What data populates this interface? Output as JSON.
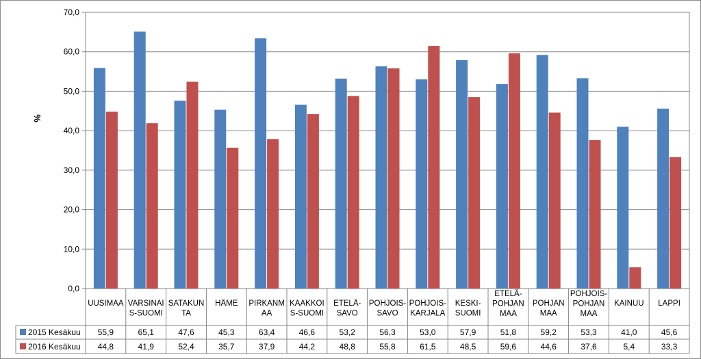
{
  "chart_data": {
    "type": "bar",
    "title": "",
    "xlabel": "",
    "ylabel": "%",
    "ylim": [
      0,
      70
    ],
    "yticks": [
      "0,0",
      "10,0",
      "20,0",
      "30,0",
      "40,0",
      "50,0",
      "60,0",
      "70,0"
    ],
    "grid": true,
    "legend": "data-table",
    "categories": [
      [
        "UUSIMAA"
      ],
      [
        "VARSINAI",
        "S-SUOMI"
      ],
      [
        "SATAKUN",
        "TA"
      ],
      [
        "HÄME"
      ],
      [
        "PIRKANM",
        "AA"
      ],
      [
        "KAAKKOI",
        "S-SUOMI"
      ],
      [
        "ETELÄ-",
        "SAVO"
      ],
      [
        "POHJOIS-",
        "SAVO"
      ],
      [
        "POHJOIS-",
        "KARJALA"
      ],
      [
        "KESKI-",
        "SUOMI"
      ],
      [
        "ETELÄ-",
        "POHJAN",
        "MAA"
      ],
      [
        "POHJAN",
        "MAA"
      ],
      [
        "POHJOIS-",
        "POHJAN",
        "MAA"
      ],
      [
        "KAINUU"
      ],
      [
        "LAPPI"
      ]
    ],
    "series": [
      {
        "name": "2015 Kesäkuu",
        "color": "#4f81bd",
        "values": [
          55.9,
          65.1,
          47.6,
          45.3,
          63.4,
          46.6,
          53.2,
          56.3,
          53.0,
          57.9,
          51.8,
          59.2,
          53.3,
          41.0,
          45.6
        ],
        "labels": [
          "55,9",
          "65,1",
          "47,6",
          "45,3",
          "63,4",
          "46,6",
          "53,2",
          "56,3",
          "53,0",
          "57,9",
          "51,8",
          "59,2",
          "53,3",
          "41,0",
          "45,6"
        ]
      },
      {
        "name": "2016 Kesäkuu",
        "color": "#c0504d",
        "values": [
          44.8,
          41.9,
          52.4,
          35.7,
          37.9,
          44.2,
          48.8,
          55.8,
          61.5,
          48.5,
          59.6,
          44.6,
          37.6,
          5.4,
          33.3
        ],
        "labels": [
          "44,8",
          "41,9",
          "52,4",
          "35,7",
          "37,9",
          "44,2",
          "48,8",
          "55,8",
          "61,5",
          "48,5",
          "59,6",
          "44,6",
          "37,6",
          "5,4",
          "33,3"
        ]
      }
    ]
  }
}
